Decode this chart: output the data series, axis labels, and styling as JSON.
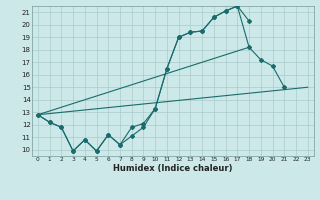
{
  "title": "",
  "xlabel": "Humidex (Indice chaleur)",
  "bg_color": "#cce8e8",
  "grid_color": "#aacccc",
  "line_color": "#1a6b6b",
  "xlim": [
    -0.5,
    23.5
  ],
  "ylim": [
    9.5,
    21.5
  ],
  "yticks": [
    10,
    11,
    12,
    13,
    14,
    15,
    16,
    17,
    18,
    19,
    20,
    21
  ],
  "xticks": [
    0,
    1,
    2,
    3,
    4,
    5,
    6,
    7,
    8,
    9,
    10,
    11,
    12,
    13,
    14,
    15,
    16,
    17,
    18,
    19,
    20,
    21,
    22,
    23
  ],
  "line1_x": [
    0,
    1,
    2,
    3,
    4,
    5,
    6,
    7,
    8,
    9,
    10,
    11,
    12,
    13,
    14,
    15,
    16,
    17,
    18,
    19,
    20,
    21
  ],
  "line1_y": [
    12.8,
    12.2,
    11.8,
    9.9,
    10.8,
    9.9,
    11.2,
    10.4,
    11.1,
    11.8,
    13.3,
    16.5,
    19.0,
    19.4,
    19.5,
    20.6,
    21.1,
    21.5,
    18.2,
    17.2,
    16.7,
    15.0
  ],
  "line2_x": [
    0,
    1,
    2,
    3,
    4,
    5,
    6,
    7,
    8,
    9,
    10,
    11,
    12,
    13,
    14,
    15,
    16,
    17,
    18
  ],
  "line2_y": [
    12.8,
    12.2,
    11.8,
    9.9,
    10.8,
    9.9,
    11.2,
    10.4,
    11.8,
    12.1,
    13.3,
    16.5,
    19.0,
    19.4,
    19.5,
    20.6,
    21.1,
    21.5,
    20.3
  ],
  "line3_x": [
    0,
    23
  ],
  "line3_y": [
    12.8,
    15.0
  ],
  "line4_x": [
    0,
    18
  ],
  "line4_y": [
    12.8,
    18.2
  ]
}
